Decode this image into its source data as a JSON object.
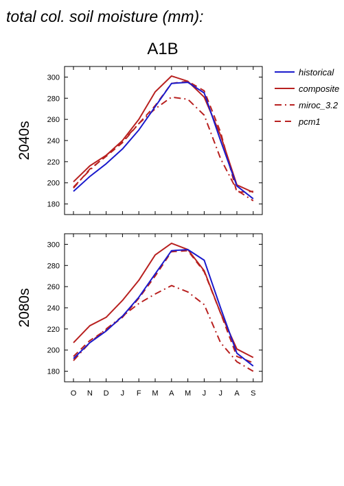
{
  "figure": {
    "title": "total col. soil moisture (mm):",
    "scenario": "A1B"
  },
  "colors": {
    "historical": "#1a1acc",
    "composite": "#b8201f",
    "miroc_3.2": "#b8201f",
    "pcm1": "#b8201f"
  },
  "chart_data": [
    {
      "type": "line",
      "panel_label": "2040s",
      "x": [
        "O",
        "N",
        "D",
        "J",
        "F",
        "M",
        "A",
        "M",
        "J",
        "J",
        "A",
        "S"
      ],
      "ylim": [
        170,
        310
      ],
      "yticks": [
        180,
        200,
        220,
        240,
        260,
        280,
        300
      ],
      "ytick_labels": [
        "180",
        "200",
        "220",
        "240",
        "260",
        "280",
        "300"
      ],
      "xtick_labels": [],
      "grid": false,
      "legend": "outside-right",
      "series": [
        {
          "name": "historical",
          "style": "solid",
          "values": [
            192,
            206,
            218,
            232,
            250,
            272,
            294,
            295,
            285,
            240,
            197,
            185
          ]
        },
        {
          "name": "composite",
          "style": "solid",
          "values": [
            201,
            216,
            226,
            240,
            260,
            286,
            301,
            296,
            281,
            245,
            198,
            191
          ]
        },
        {
          "name": "miroc_3.2",
          "style": "dashdot",
          "values": [
            196,
            212,
            226,
            239,
            256,
            270,
            281,
            279,
            264,
            223,
            193,
            183
          ]
        },
        {
          "name": "pcm1",
          "style": "dashed",
          "values": [
            195,
            213,
            225,
            238,
            256,
            273,
            294,
            296,
            287,
            248,
            191,
            192
          ]
        }
      ]
    },
    {
      "type": "line",
      "panel_label": "2080s",
      "x": [
        "O",
        "N",
        "D",
        "J",
        "F",
        "M",
        "A",
        "M",
        "J",
        "J",
        "A",
        "S"
      ],
      "ylim": [
        170,
        310
      ],
      "yticks": [
        180,
        200,
        220,
        240,
        260,
        280,
        300
      ],
      "ytick_labels": [
        "180",
        "200",
        "220",
        "240",
        "260",
        "280",
        "300"
      ],
      "xtick_labels": [
        "O",
        "N",
        "D",
        "J",
        "F",
        "M",
        "A",
        "M",
        "J",
        "J",
        "A",
        "S"
      ],
      "grid": false,
      "legend": "",
      "series": [
        {
          "name": "historical",
          "style": "solid",
          "values": [
            192,
            207,
            218,
            232,
            250,
            272,
            294,
            295,
            285,
            240,
            197,
            185
          ]
        },
        {
          "name": "composite",
          "style": "solid",
          "values": [
            207,
            223,
            231,
            247,
            266,
            290,
            301,
            295,
            275,
            235,
            201,
            193
          ]
        },
        {
          "name": "miroc_3.2",
          "style": "dashdot",
          "values": [
            190,
            207,
            220,
            232,
            244,
            253,
            261,
            255,
            243,
            207,
            189,
            180
          ]
        },
        {
          "name": "pcm1",
          "style": "dashed",
          "values": [
            194,
            209,
            219,
            231,
            249,
            270,
            293,
            294,
            274,
            235,
            194,
            188
          ]
        }
      ]
    }
  ]
}
